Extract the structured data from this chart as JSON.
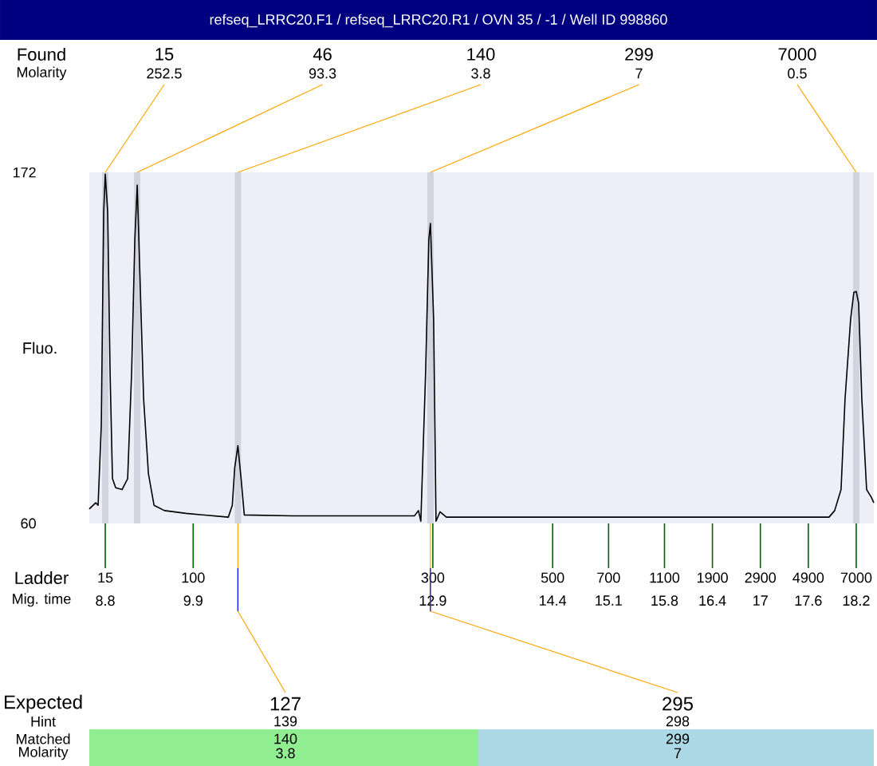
{
  "chart_data": {
    "type": "line",
    "title": "refseq_LRRC20.F1 / refseq_LRRC20.R1 / OVN 35 / -1 / Well ID 998860",
    "xlabel": "Mig. time",
    "ylabel": "Fluo.",
    "x": [
      8.6,
      8.68,
      8.71,
      8.75,
      8.78,
      8.8,
      8.83,
      8.86,
      8.89,
      8.93,
      9.01,
      9.08,
      9.13,
      9.17,
      9.2,
      9.23,
      9.28,
      9.34,
      9.41,
      9.54,
      9.81,
      10.34,
      10.39,
      10.42,
      10.46,
      10.5,
      10.54,
      11.14,
      12.67,
      12.72,
      12.75,
      12.81,
      12.85,
      12.87,
      12.91,
      12.94,
      12.99,
      13.07,
      17.86,
      17.93,
      18.01,
      18.06,
      18.13,
      18.17,
      18.2,
      18.23,
      18.27,
      18.33,
      18.39,
      18.42
    ],
    "series": [
      {
        "color": "#000000",
        "values": [
          64.6,
          66.6,
          65.8,
          91.2,
          159.3,
          171.4,
          159.3,
          108.4,
          74.3,
          71.4,
          70.8,
          74.3,
          108.4,
          150.6,
          167.9,
          142.1,
          99.7,
          75.9,
          65.8,
          64.1,
          63.2,
          62.0,
          65.8,
          77.7,
          84.8,
          74.3,
          62.7,
          62.4,
          62.4,
          64.1,
          60.7,
          108.4,
          150.6,
          155.7,
          125.2,
          60.7,
          63.7,
          62.0,
          62.0,
          64.1,
          70.8,
          99.7,
          125.2,
          133.7,
          134.0,
          130.3,
          99.7,
          70.8,
          68.3,
          66.6
        ]
      }
    ],
    "xlim": [
      8.6,
      18.42
    ],
    "ylim": [
      60,
      172
    ],
    "xticks": [
      8.8,
      9.9,
      12.9,
      14.4,
      15.1,
      15.8,
      16.4,
      17,
      17.6,
      18.2
    ],
    "yticks": [
      60,
      172
    ],
    "bands": [
      {
        "axis": "x",
        "from": 8.76,
        "to": 8.84,
        "color": "#d3d3e0"
      },
      {
        "axis": "x",
        "from": 9.16,
        "to": 9.24,
        "color": "#d3d3e0"
      },
      {
        "axis": "x",
        "from": 10.42,
        "to": 10.5,
        "color": "#d3d3e0"
      },
      {
        "axis": "x",
        "from": 12.83,
        "to": 12.91,
        "color": "#d3d3e0"
      },
      {
        "axis": "x",
        "from": 18.16,
        "to": 18.24,
        "color": "#d3d3e0"
      }
    ],
    "annotations": [
      "Found",
      "Molarity",
      "15",
      "46",
      "140",
      "299",
      "7000",
      {
        "text": "252.5",
        "x": 8.8,
        "y": 172
      },
      {
        "text": "93.3",
        "x": 9.2,
        "y": 172
      },
      {
        "text": "3.8",
        "x": 10.46,
        "y": 172
      },
      {
        "text": "7",
        "x": 12.87,
        "y": 172
      },
      {
        "text": "0.5",
        "x": 18.2,
        "y": 172
      },
      "Ladder",
      "15",
      "100",
      "300",
      "500",
      "700",
      "1100",
      "1900",
      "2900",
      "4900",
      "7000",
      "Expected",
      "Hint",
      "Matched",
      "Molarity",
      {
        "text": "127",
        "x": 10.46,
        "y": 60
      },
      {
        "text": "295",
        "x": 12.87,
        "y": 60
      },
      "139",
      "298",
      "140",
      "299",
      "3.8",
      "7"
    ],
    "marker": "none",
    "line_style": "solid"
  }
}
